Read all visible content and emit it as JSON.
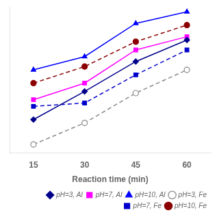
{
  "chart_data": {
    "type": "line",
    "x_label": "Reaction time (min)",
    "x": [
      15,
      30,
      45,
      60
    ],
    "xlim": [
      8,
      67
    ],
    "xticks": [
      15,
      30,
      45,
      60
    ],
    "ylim": [
      10,
      98
    ],
    "tick_labels": "x",
    "grid": false,
    "legend": "lower right",
    "series": [
      {
        "name": "pH=3, Al",
        "color": "#00008B",
        "line_style": "solid",
        "marker": "diamond",
        "values": [
          30,
          47,
          65,
          78
        ]
      },
      {
        "name": "pH=7, Al",
        "color": "#FF00FF",
        "line_style": "solid",
        "marker": "square",
        "values": [
          42,
          52,
          72,
          80
        ]
      },
      {
        "name": "pH=10, Al",
        "color": "#0000FF",
        "line_style": "solid",
        "marker": "triangle",
        "values": [
          60,
          68,
          88,
          95
        ]
      },
      {
        "name": "pH=3, Fe",
        "color": "#888888",
        "line_style": "dashed",
        "marker": "open_circle",
        "values": [
          15,
          28,
          46,
          60
        ]
      },
      {
        "name": "pH=7, Fe",
        "color": "#0000CD",
        "line_style": "dashed",
        "marker": "square",
        "values": [
          38,
          40,
          57,
          72
        ]
      },
      {
        "name": "pH=10, Fe",
        "color": "#8B0000",
        "line_style": "dashed",
        "marker": "circle",
        "values": [
          52,
          62,
          77,
          87
        ]
      }
    ]
  }
}
